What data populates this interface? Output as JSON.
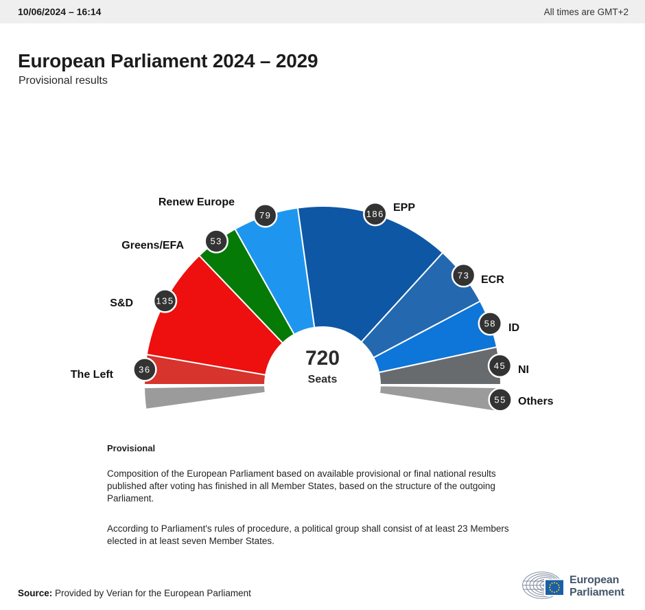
{
  "topbar": {
    "datetime": "10/06/2024 – 16:14",
    "timezone_note": "All times are GMT+2"
  },
  "header": {
    "title": "European Parliament 2024 – 2029",
    "subtitle": "Provisional results"
  },
  "chart_data": {
    "type": "hemicycle",
    "title": "European Parliament 2024 – 2029",
    "subtitle": "Provisional results",
    "total_seats": 720,
    "center_label": {
      "value": "720",
      "unit": "Seats"
    },
    "badge_color": "#333333",
    "groups": [
      {
        "name": "The Left",
        "seats": 36,
        "color": "#d6342c"
      },
      {
        "name": "S&D",
        "seats": 135,
        "color": "#ee0f0f"
      },
      {
        "name": "Greens/EFA",
        "seats": 53,
        "color": "#067a06"
      },
      {
        "name": "Renew Europe",
        "seats": 79,
        "color": "#1e96f0"
      },
      {
        "name": "EPP",
        "seats": 186,
        "color": "#0e57a5"
      },
      {
        "name": "ECR",
        "seats": 73,
        "color": "#2468b0"
      },
      {
        "name": "ID",
        "seats": 58,
        "color": "#0d76d8"
      },
      {
        "name": "NI",
        "seats": 45,
        "color": "#686b6d"
      },
      {
        "name": "Others",
        "seats": 55,
        "color": "#9b9b9b",
        "split_ends": true
      }
    ],
    "layout_hint": "half-donut, groups left-to-right, Others split across both ends below horizontal"
  },
  "description": {
    "heading": "Provisional",
    "paragraph1": [
      "Composition of the European Parliament based on available provisional or final national results",
      "published after voting has finished in all Member States, based on the structure of the outgoing",
      "Parliament."
    ],
    "paragraph2": [
      "According to Parliament's rules of procedure, a political group shall consist of at least 23 Members",
      "elected in at least seven Member States."
    ]
  },
  "footer": {
    "source_label": "Source:",
    "source_text": " Provided by Verian for the European Parliament"
  },
  "logo": {
    "line1": "European",
    "line2": "Parliament",
    "flag_color": "#1a5fa8",
    "star_color": "#f7d117"
  }
}
